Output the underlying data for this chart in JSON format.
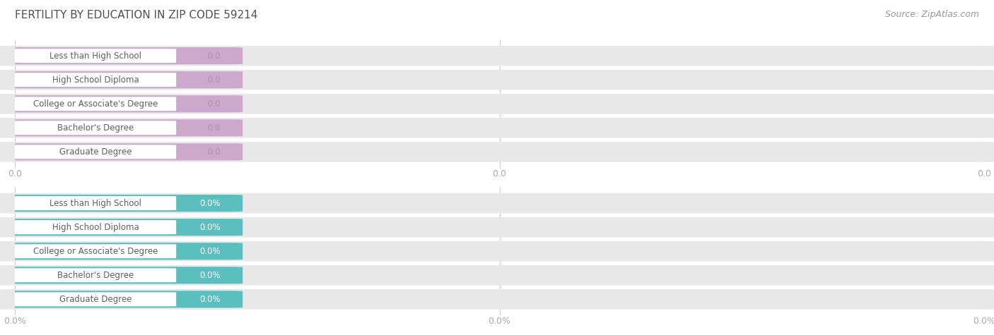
{
  "title": "FERTILITY BY EDUCATION IN ZIP CODE 59214",
  "source_text": "Source: ZipAtlas.com",
  "categories": [
    "Less than High School",
    "High School Diploma",
    "College or Associate's Degree",
    "Bachelor's Degree",
    "Graduate Degree"
  ],
  "values_top": [
    0.0,
    0.0,
    0.0,
    0.0,
    0.0
  ],
  "values_bottom": [
    0.0,
    0.0,
    0.0,
    0.0,
    0.0
  ],
  "bar_color_top": "#cca8cc",
  "bar_color_bottom": "#5bbfbf",
  "bar_bg_color": "#e4e4e4",
  "title_color": "#505050",
  "source_color": "#999999",
  "value_label_color_top": "#b090b0",
  "value_label_color_bottom": "#ffffff",
  "label_text_color": "#606060",
  "tick_label_color": "#aaaaaa",
  "xtick_labels_top": [
    "0.0",
    "0.0",
    "0.0"
  ],
  "xtick_labels_bottom": [
    "0.0%",
    "0.0%",
    "0.0%"
  ],
  "title_fontsize": 11,
  "source_fontsize": 9,
  "label_fontsize": 8.5,
  "value_fontsize": 8.5,
  "tick_fontsize": 9
}
